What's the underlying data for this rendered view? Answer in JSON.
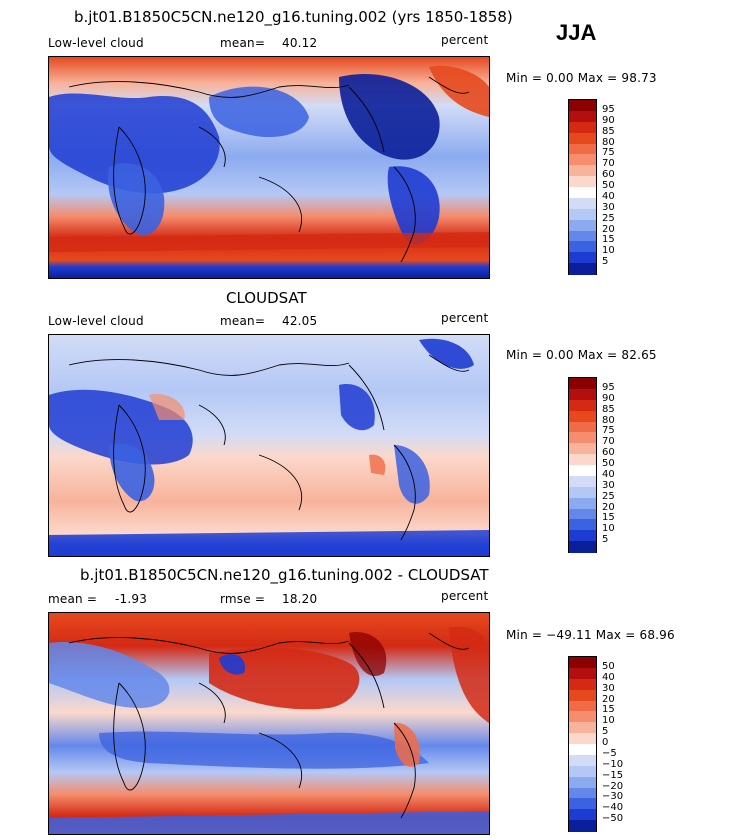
{
  "season": "JJA",
  "panels": [
    {
      "id": "model",
      "title": "b.jt01.B1850C5CN.ne120_g16.tuning.002 (yrs 1850-1858)",
      "left_label": "Low-level cloud",
      "stat_label": "mean=",
      "stat_value": "40.12",
      "stat2_label": "",
      "stat2_value": "",
      "units": "percent",
      "min_max": "Min =    0.00 Max =  98.73",
      "levels": [
        "95",
        "90",
        "85",
        "80",
        "75",
        "70",
        "60",
        "50",
        "40",
        "30",
        "25",
        "20",
        "15",
        "10",
        "5"
      ]
    },
    {
      "id": "obs",
      "title": "CLOUDSAT",
      "left_label": "Low-level cloud",
      "stat_label": "mean=",
      "stat_value": "42.05",
      "stat2_label": "",
      "stat2_value": "",
      "units": "percent",
      "min_max": "Min =    0.00 Max =  82.65",
      "levels": [
        "95",
        "90",
        "85",
        "80",
        "75",
        "70",
        "60",
        "50",
        "40",
        "30",
        "25",
        "20",
        "15",
        "10",
        "5"
      ]
    },
    {
      "id": "diff",
      "title": "b.jt01.B1850C5CN.ne120_g16.tuning.002 - CLOUDSAT",
      "left_label": "mean =",
      "stat_label": "",
      "stat_value": "-1.93",
      "stat2_label": "rmse =",
      "stat2_value": "18.20",
      "units": "percent",
      "min_max": "Min = −49.11 Max =  68.96",
      "levels": [
        "50",
        "40",
        "30",
        "20",
        "15",
        "10",
        "5",
        "0",
        "−5",
        "−10",
        "−15",
        "−20",
        "−30",
        "−40",
        "−50"
      ]
    }
  ],
  "colors": {
    "scale": [
      "#8b0000",
      "#b40f0f",
      "#d42a14",
      "#e6491e",
      "#f06c46",
      "#f58d6e",
      "#f8b39b",
      "#fbd8cb",
      "#ffffff",
      "#d2dcf6",
      "#b4c8f5",
      "#8caaf0",
      "#6488ea",
      "#3b62e0",
      "#1e3cd2",
      "#0b1f9a"
    ]
  }
}
